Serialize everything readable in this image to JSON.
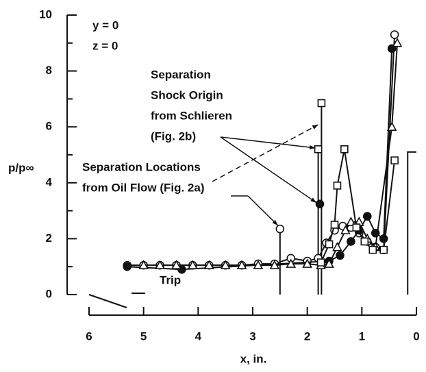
{
  "chart_data": {
    "type": "line",
    "xlabel": "x, in.",
    "ylabel": "p/p∞",
    "xlim": [
      6,
      0
    ],
    "xticks": [
      6,
      5,
      4,
      3,
      2,
      1,
      0
    ],
    "ylim": [
      0,
      10
    ],
    "yticks": [
      0,
      2,
      4,
      6,
      8,
      10
    ],
    "yminor": [
      1,
      3,
      5,
      7,
      9
    ],
    "series": [
      {
        "marker": "circle-open",
        "color": "#111111",
        "x": [
          5.3,
          5.0,
          4.7,
          4.4,
          4.1,
          3.8,
          3.5,
          3.2,
          2.9,
          2.6,
          2.3,
          2.0,
          1.8,
          1.65,
          1.5,
          1.35,
          1.2,
          1.05,
          0.9,
          0.75,
          0.6,
          0.4
        ],
        "values": [
          1.05,
          1.05,
          1.05,
          1.05,
          1.05,
          1.05,
          1.05,
          1.05,
          1.1,
          1.1,
          1.3,
          1.2,
          1.3,
          1.85,
          2.3,
          2.45,
          2.4,
          2.2,
          1.9,
          1.7,
          1.6,
          9.3
        ]
      },
      {
        "marker": "circle-filled",
        "color": "#111111",
        "x": [
          5.3,
          4.3,
          1.6,
          1.4,
          1.2,
          1.05,
          0.9,
          0.75,
          0.6,
          0.45
        ],
        "values": [
          1.0,
          0.9,
          1.2,
          1.4,
          1.9,
          2.3,
          2.8,
          2.2,
          2.0,
          8.8
        ]
      },
      {
        "marker": "triangle",
        "color": "#111111",
        "x": [
          5.0,
          4.7,
          4.4,
          4.1,
          3.8,
          3.5,
          3.2,
          2.9,
          2.6,
          2.3,
          2.0,
          1.75,
          1.6,
          1.45,
          1.3,
          1.2,
          1.05,
          0.9,
          0.75,
          0.45,
          0.35
        ],
        "values": [
          1.05,
          1.05,
          1.05,
          1.05,
          1.05,
          1.05,
          1.05,
          1.05,
          1.05,
          1.1,
          1.1,
          1.05,
          1.1,
          1.7,
          2.3,
          2.6,
          2.6,
          2.0,
          1.7,
          6.0,
          9.0
        ]
      },
      {
        "marker": "square",
        "color": "#111111",
        "x": [
          1.75,
          1.6,
          1.5,
          1.45,
          1.32,
          1.1,
          0.95,
          0.8,
          0.6,
          0.4
        ],
        "values": [
          1.15,
          1.8,
          2.5,
          3.9,
          5.2,
          2.4,
          1.9,
          1.6,
          1.6,
          4.8
        ]
      }
    ],
    "body": {
      "x": [
        0.16,
        0.16,
        0.0
      ],
      "values": [
        0,
        5.1,
        5.1
      ]
    },
    "separation_lines": {
      "x": [
        2.5,
        1.8,
        1.74
      ],
      "values": [
        2.35,
        5.2,
        6.85
      ],
      "markers": [
        "circle-open",
        "square",
        "square"
      ]
    },
    "shock_point": {
      "x": 1.77,
      "value": 3.24
    },
    "annotations": {
      "conditions": [
        "y = 0",
        "z = 0"
      ],
      "schlieren": [
        "Separation",
        "Shock Origin",
        "from Schlieren",
        "(Fig. 2b)"
      ],
      "oil_flow": [
        "Separation Locations",
        "from Oil Flow (Fig. 2a)"
      ],
      "trip": "Trip"
    }
  }
}
